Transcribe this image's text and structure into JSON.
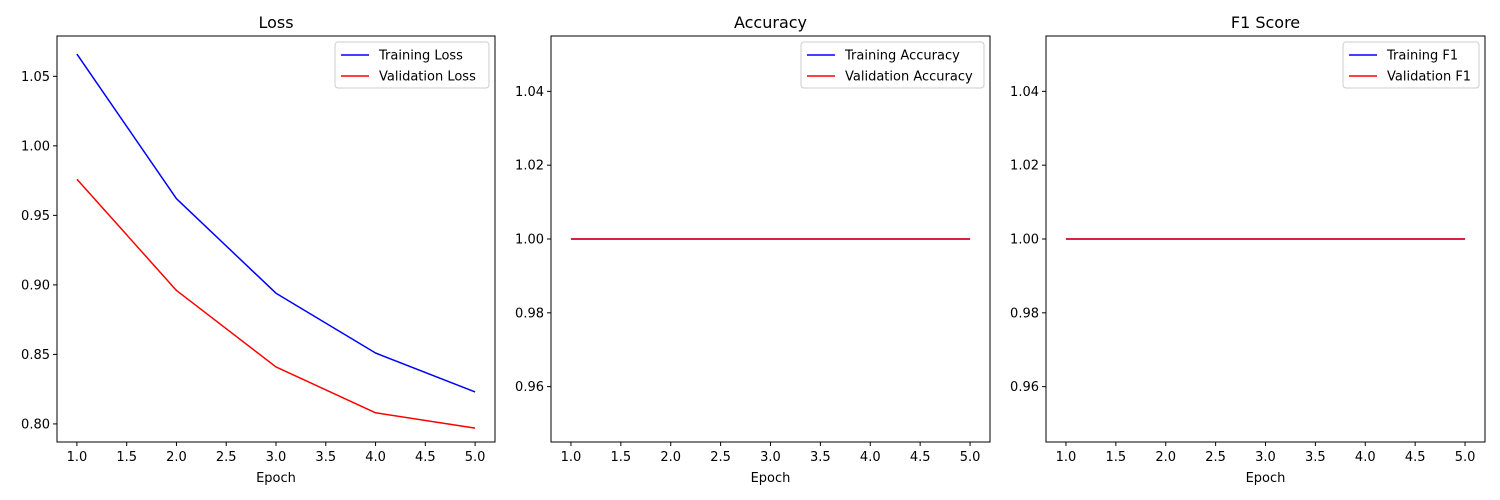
{
  "chart_data": [
    {
      "type": "line",
      "title": "Loss",
      "xlabel": "Epoch",
      "ylabel": "",
      "x": [
        1,
        2,
        3,
        4,
        5
      ],
      "xlim": [
        0.8,
        5.2
      ],
      "ylim": [
        0.787,
        1.079
      ],
      "xticks": [
        "1.0",
        "1.5",
        "2.0",
        "2.5",
        "3.0",
        "3.5",
        "4.0",
        "4.5",
        "5.0"
      ],
      "yticks": [
        "0.80",
        "0.85",
        "0.90",
        "0.95",
        "1.00",
        "1.05"
      ],
      "legend_position": "top-right",
      "grid": false,
      "series": [
        {
          "name": "Training Loss",
          "color": "#0000ff",
          "values": [
            1.066,
            0.962,
            0.894,
            0.851,
            0.823
          ]
        },
        {
          "name": "Validation Loss",
          "color": "#ff0000",
          "values": [
            0.976,
            0.896,
            0.841,
            0.808,
            0.797
          ]
        }
      ]
    },
    {
      "type": "line",
      "title": "Accuracy",
      "xlabel": "Epoch",
      "ylabel": "",
      "x": [
        1,
        2,
        3,
        4,
        5
      ],
      "xlim": [
        0.8,
        5.2
      ],
      "ylim": [
        0.945,
        1.055
      ],
      "xticks": [
        "1.0",
        "1.5",
        "2.0",
        "2.5",
        "3.0",
        "3.5",
        "4.0",
        "4.5",
        "5.0"
      ],
      "yticks": [
        "0.96",
        "0.98",
        "1.00",
        "1.02",
        "1.04"
      ],
      "legend_position": "top-right",
      "grid": false,
      "series": [
        {
          "name": "Training Accuracy",
          "color": "#0000ff",
          "values": [
            1.0,
            1.0,
            1.0,
            1.0,
            1.0
          ]
        },
        {
          "name": "Validation Accuracy",
          "color": "#ff0000",
          "values": [
            1.0,
            1.0,
            1.0,
            1.0,
            1.0
          ]
        }
      ]
    },
    {
      "type": "line",
      "title": "F1 Score",
      "xlabel": "Epoch",
      "ylabel": "",
      "x": [
        1,
        2,
        3,
        4,
        5
      ],
      "xlim": [
        0.8,
        5.2
      ],
      "ylim": [
        0.945,
        1.055
      ],
      "xticks": [
        "1.0",
        "1.5",
        "2.0",
        "2.5",
        "3.0",
        "3.5",
        "4.0",
        "4.5",
        "5.0"
      ],
      "yticks": [
        "0.96",
        "0.98",
        "1.00",
        "1.02",
        "1.04"
      ],
      "legend_position": "top-right",
      "grid": false,
      "series": [
        {
          "name": "Training F1",
          "color": "#0000ff",
          "values": [
            1.0,
            1.0,
            1.0,
            1.0,
            1.0
          ]
        },
        {
          "name": "Validation F1",
          "color": "#ff0000",
          "values": [
            1.0,
            1.0,
            1.0,
            1.0,
            1.0
          ]
        }
      ]
    }
  ]
}
